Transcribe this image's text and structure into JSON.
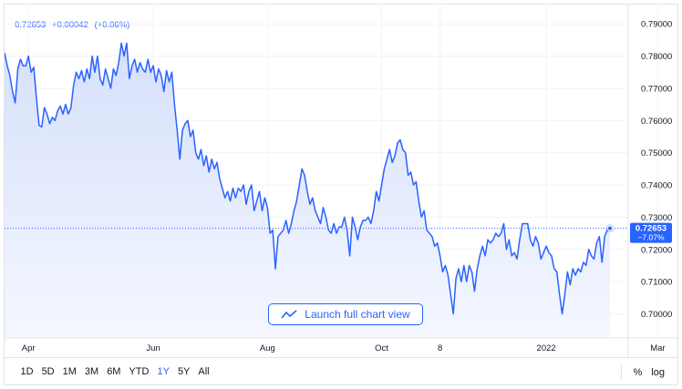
{
  "quote": {
    "price": "0.72653",
    "change": "+0.00042",
    "change_pct": "(+0.06%)"
  },
  "price_tag": {
    "price": "0.72653",
    "change_pct": "−7.07%"
  },
  "launch_button": {
    "label": "Launch full chart view"
  },
  "ranges": [
    {
      "label": "1D",
      "active": false
    },
    {
      "label": "5D",
      "active": false
    },
    {
      "label": "1M",
      "active": false
    },
    {
      "label": "3M",
      "active": false
    },
    {
      "label": "6M",
      "active": false
    },
    {
      "label": "YTD",
      "active": false
    },
    {
      "label": "1Y",
      "active": true
    },
    {
      "label": "5Y",
      "active": false
    },
    {
      "label": "All",
      "active": false
    }
  ],
  "scale_options": {
    "percent": "%",
    "log": "log"
  },
  "colors": {
    "line": "#2962ff",
    "area_top": "#d6e0fb",
    "area_bottom": "#f4f7ff",
    "grid": "#f0f3fa",
    "tag_bg": "#2962ff"
  },
  "chart_data": {
    "type": "area",
    "x_ticks": [
      {
        "label": "Apr",
        "i": 9
      },
      {
        "label": "Jun",
        "i": 56
      },
      {
        "label": "Aug",
        "i": 99
      },
      {
        "label": "Oct",
        "i": 142
      },
      {
        "label": "8",
        "i": 164
      },
      {
        "label": "2022",
        "i": 204
      },
      {
        "label": "Mar",
        "i": 246
      }
    ],
    "y_ticks": [
      "0.79000",
      "0.78000",
      "0.77000",
      "0.76000",
      "0.75000",
      "0.74000",
      "0.73000",
      "0.72000",
      "0.71000",
      "0.70000"
    ],
    "y_tick_values": [
      0.79,
      0.78,
      0.77,
      0.76,
      0.75,
      0.74,
      0.73,
      0.72,
      0.71,
      0.7
    ],
    "ylim": [
      0.6925,
      0.796
    ],
    "last_value": 0.72653,
    "values": [
      0.781,
      0.777,
      0.774,
      0.769,
      0.7655,
      0.776,
      0.779,
      0.777,
      0.777,
      0.78,
      0.775,
      0.7765,
      0.767,
      0.7585,
      0.758,
      0.764,
      0.762,
      0.759,
      0.761,
      0.76,
      0.763,
      0.7645,
      0.762,
      0.765,
      0.762,
      0.764,
      0.771,
      0.775,
      0.773,
      0.7755,
      0.772,
      0.776,
      0.773,
      0.78,
      0.775,
      0.78,
      0.773,
      0.771,
      0.776,
      0.773,
      0.77,
      0.776,
      0.774,
      0.778,
      0.784,
      0.78,
      0.784,
      0.773,
      0.777,
      0.779,
      0.775,
      0.778,
      0.776,
      0.775,
      0.779,
      0.775,
      0.777,
      0.772,
      0.776,
      0.774,
      0.769,
      0.7755,
      0.772,
      0.775,
      0.765,
      0.757,
      0.748,
      0.757,
      0.759,
      0.76,
      0.755,
      0.757,
      0.75,
      0.748,
      0.751,
      0.746,
      0.749,
      0.744,
      0.748,
      0.745,
      0.747,
      0.742,
      0.739,
      0.736,
      0.738,
      0.735,
      0.739,
      0.736,
      0.739,
      0.738,
      0.74,
      0.734,
      0.738,
      0.74,
      0.732,
      0.735,
      0.738,
      0.732,
      0.736,
      0.733,
      0.725,
      0.726,
      0.714,
      0.724,
      0.725,
      0.726,
      0.729,
      0.725,
      0.728,
      0.732,
      0.735,
      0.74,
      0.745,
      0.743,
      0.738,
      0.734,
      0.736,
      0.732,
      0.73,
      0.728,
      0.733,
      0.73,
      0.726,
      0.725,
      0.728,
      0.725,
      0.727,
      0.727,
      0.73,
      0.726,
      0.718,
      0.73,
      0.727,
      0.723,
      0.727,
      0.729,
      0.729,
      0.73,
      0.728,
      0.732,
      0.738,
      0.735,
      0.74,
      0.745,
      0.748,
      0.751,
      0.747,
      0.749,
      0.753,
      0.754,
      0.751,
      0.75,
      0.743,
      0.744,
      0.74,
      0.741,
      0.735,
      0.73,
      0.732,
      0.726,
      0.725,
      0.724,
      0.721,
      0.722,
      0.718,
      0.713,
      0.715,
      0.712,
      0.706,
      0.7,
      0.711,
      0.714,
      0.71,
      0.715,
      0.71,
      0.715,
      0.713,
      0.707,
      0.714,
      0.718,
      0.721,
      0.718,
      0.723,
      0.722,
      0.723,
      0.725,
      0.724,
      0.725,
      0.728,
      0.72,
      0.723,
      0.718,
      0.719,
      0.717,
      0.723,
      0.728,
      0.728,
      0.728,
      0.723,
      0.721,
      0.724,
      0.722,
      0.717,
      0.719,
      0.721,
      0.719,
      0.718,
      0.714,
      0.713,
      0.706,
      0.7,
      0.706,
      0.713,
      0.709,
      0.714,
      0.712,
      0.714,
      0.713,
      0.716,
      0.715,
      0.72,
      0.718,
      0.717,
      0.722,
      0.724,
      0.716,
      0.724,
      0.726,
      0.72653
    ],
    "grid": true,
    "legend": "none"
  }
}
